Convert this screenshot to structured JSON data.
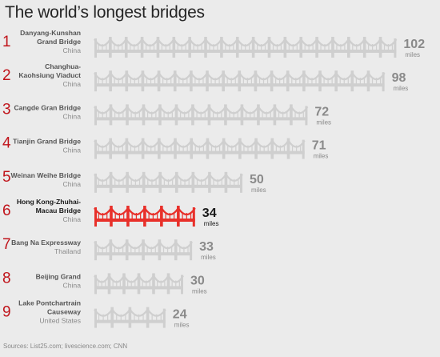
{
  "title": "The world’s longest bridges",
  "source": "Sources: List25.com; livescience.com; CNN",
  "colors": {
    "bar": "#cfcfcf",
    "highlight": "#e8302a",
    "rank": "#c0141b",
    "name": "#555555",
    "country": "#8a8a8a",
    "value": "#8a8a8a",
    "value_highlight": "#1a1a1a"
  },
  "chart_data": {
    "type": "bar",
    "orientation": "horizontal",
    "unit_label": "miles",
    "highlight_rank": 6,
    "bridges": [
      {
        "rank": "1",
        "name_lines": [
          "Danyang-Kunshan",
          "Grand Bridge"
        ],
        "country": "China",
        "value": 102
      },
      {
        "rank": "2",
        "name_lines": [
          "Changhua-",
          "Kaohsiung Viaduct"
        ],
        "country": "China",
        "value": 98
      },
      {
        "rank": "3",
        "name_lines": [
          "Cangde Gran Bridge"
        ],
        "country": "China",
        "value": 72
      },
      {
        "rank": "4",
        "name_lines": [
          "Tianjin Grand Bridge"
        ],
        "country": "China",
        "value": 71
      },
      {
        "rank": "5",
        "name_lines": [
          "Weinan Weihe Bridge"
        ],
        "country": "China",
        "value": 50
      },
      {
        "rank": "6",
        "name_lines": [
          "Hong Kong-Zhuhai-",
          "Macau Bridge"
        ],
        "country": "China",
        "value": 34
      },
      {
        "rank": "7",
        "name_lines": [
          "Bang Na Expressway"
        ],
        "country": "Thailand",
        "value": 33
      },
      {
        "rank": "8",
        "name_lines": [
          "Beijing Grand"
        ],
        "country": "China",
        "value": 30
      },
      {
        "rank": "9",
        "name_lines": [
          "Lake Pontchartrain",
          "Causeway"
        ],
        "country": "United States",
        "value": 24
      }
    ]
  }
}
